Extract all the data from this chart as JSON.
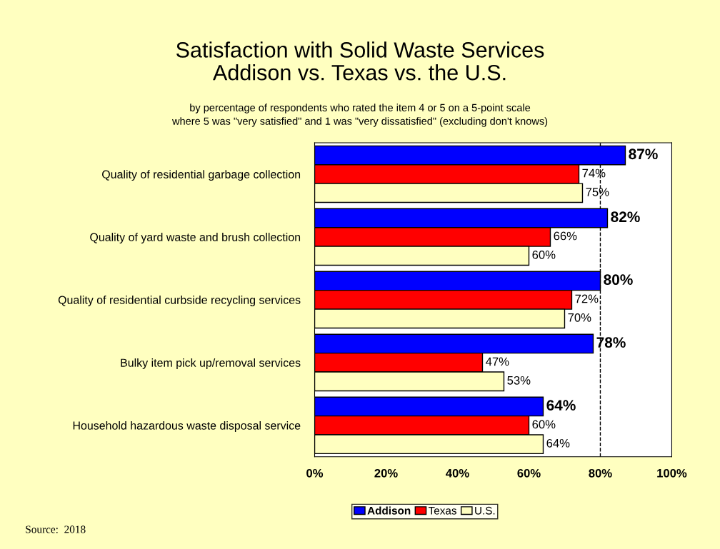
{
  "chart_data": {
    "type": "bar",
    "orientation": "horizontal",
    "title": "Satisfaction with Solid Waste Services\nAddison vs. Texas vs. the U.S.",
    "subtitle": "by percentage of respondents who rated the item 4 or 5 on a 5-point scale\nwhere 5 was \"very satisfied\" and 1 was \"very dissatisfied\" (excluding don't knows)",
    "categories": [
      "Quality of residential garbage collection",
      "Quality of yard waste and brush collection",
      "Quality of residential curbside recycling services",
      "Bulky item pick up/removal services",
      "Household hazardous waste disposal service"
    ],
    "series": [
      {
        "name": "Addison",
        "color": "#0000ff",
        "values": [
          87,
          82,
          80,
          78,
          64
        ],
        "value_labels": [
          "87%",
          "82%",
          "80%",
          "78%",
          "64%"
        ]
      },
      {
        "name": "Texas",
        "color": "#ff0000",
        "values": [
          74,
          66,
          72,
          47,
          60
        ],
        "value_labels": [
          "74%",
          "66%",
          "72%",
          "47%",
          "60%"
        ]
      },
      {
        "name": "U.S.",
        "color": "#ffffc0",
        "values": [
          75,
          60,
          70,
          53,
          64
        ],
        "value_labels": [
          "75%",
          "60%",
          "70%",
          "53%",
          "64%"
        ]
      }
    ],
    "xlim": [
      0,
      100
    ],
    "xticks": [
      {
        "value": 0,
        "label": "0%"
      },
      {
        "value": 20,
        "label": "20%"
      },
      {
        "value": 40,
        "label": "40%"
      },
      {
        "value": 60,
        "label": "60%"
      },
      {
        "value": 80,
        "label": "80%"
      },
      {
        "value": 100,
        "label": "100%"
      }
    ],
    "ref_lines": [
      {
        "axis": "x",
        "value": 80,
        "label": null,
        "line_style": "dashed",
        "color": "#000000"
      }
    ],
    "legend": "bottom",
    "grid": false,
    "annotations": [
      "Source:  2018"
    ]
  }
}
